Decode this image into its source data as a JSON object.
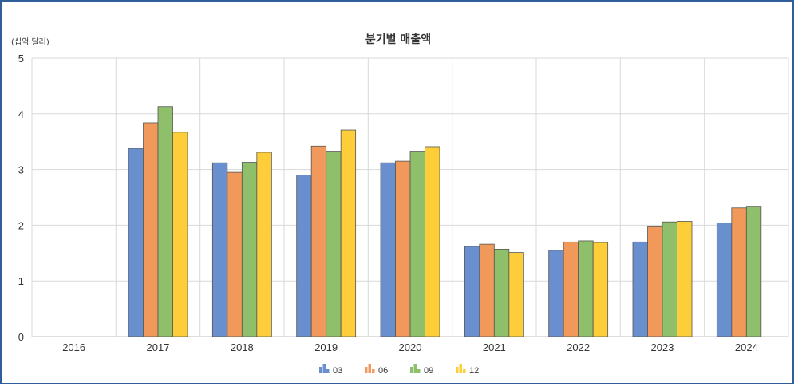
{
  "chart_data": {
    "type": "bar",
    "title": "분기별 매출액",
    "unit_label": "(십억 달러)",
    "xlabel": "",
    "ylabel": "",
    "ylim": [
      0,
      5
    ],
    "yticks": [
      "0",
      "1",
      "2",
      "3",
      "4",
      "5"
    ],
    "grid": true,
    "legend_position": "bottom",
    "categories": [
      "2016",
      "2017",
      "2018",
      "2019",
      "2020",
      "2021",
      "2022",
      "2023",
      "2024"
    ],
    "series": [
      {
        "name": "03",
        "color": "#6a8fcf",
        "values": [
          null,
          3.38,
          3.12,
          2.9,
          3.12,
          1.62,
          1.55,
          1.7,
          2.04
        ]
      },
      {
        "name": "06",
        "color": "#f0995a",
        "values": [
          null,
          3.84,
          2.95,
          3.42,
          3.15,
          1.66,
          1.7,
          1.97,
          2.31
        ]
      },
      {
        "name": "09",
        "color": "#8fbf6a",
        "values": [
          null,
          4.13,
          3.13,
          3.33,
          3.33,
          1.57,
          1.72,
          2.06,
          2.34
        ]
      },
      {
        "name": "12",
        "color": "#fdcd3a",
        "values": [
          null,
          3.67,
          3.31,
          3.71,
          3.41,
          1.51,
          1.69,
          2.07,
          null
        ]
      }
    ]
  }
}
